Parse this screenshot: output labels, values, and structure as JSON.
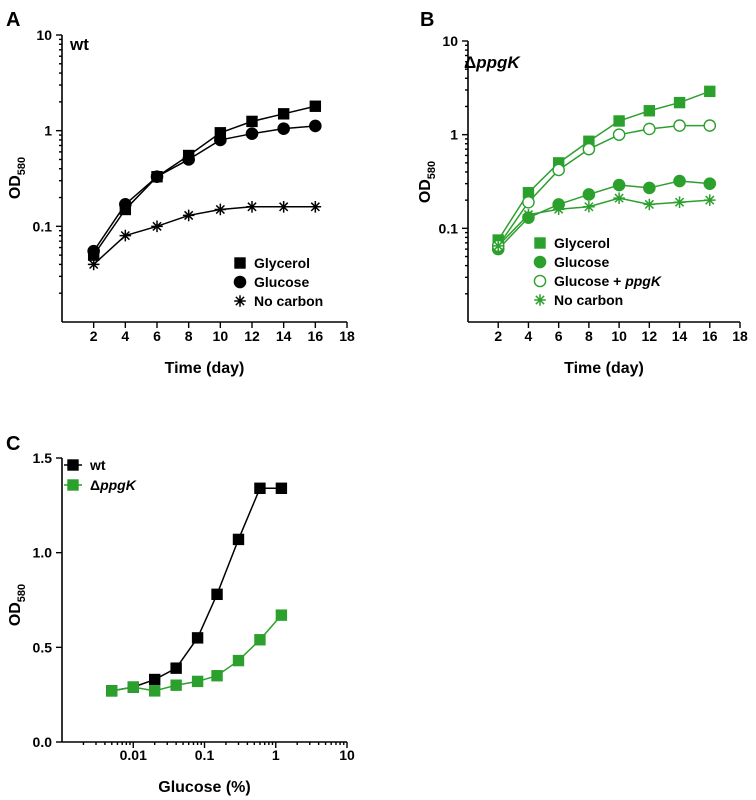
{
  "colors": {
    "black": "#000000",
    "green": "#2ca02c"
  },
  "chart_data": [
    {
      "panel_label": "A",
      "type": "line",
      "title": "wt",
      "title_style": "plain",
      "xlabel": "Time (day)",
      "ylabel": "OD",
      "ylabel_sub": "580",
      "x_scale": "linear",
      "y_scale": "log",
      "xlim": [
        0,
        18
      ],
      "ylim": [
        0.01,
        10
      ],
      "x_ticks": [
        2,
        4,
        6,
        8,
        10,
        12,
        14,
        16,
        18
      ],
      "y_ticks": [
        0.1,
        1,
        10
      ],
      "y_tick_labels": [
        "0.1",
        "1",
        "10"
      ],
      "legend_position": "bottom-right",
      "series": [
        {
          "name": "Glycerol",
          "marker": "square",
          "fill": "filled",
          "color": "#000000",
          "x": [
            2,
            4,
            6,
            8,
            10,
            12,
            14,
            16
          ],
          "y": [
            0.05,
            0.15,
            0.33,
            0.55,
            0.95,
            1.25,
            1.5,
            1.8
          ]
        },
        {
          "name": "Glucose",
          "marker": "circle",
          "fill": "filled",
          "color": "#000000",
          "x": [
            2,
            4,
            6,
            8,
            10,
            12,
            14,
            16
          ],
          "y": [
            0.055,
            0.17,
            0.33,
            0.5,
            0.8,
            0.93,
            1.05,
            1.12
          ]
        },
        {
          "name": "No carbon",
          "marker": "asterisk",
          "fill": "filled",
          "color": "#000000",
          "x": [
            2,
            4,
            6,
            8,
            10,
            12,
            14,
            16
          ],
          "y": [
            0.04,
            0.08,
            0.1,
            0.13,
            0.15,
            0.16,
            0.16,
            0.16
          ]
        }
      ]
    },
    {
      "panel_label": "B",
      "type": "line",
      "title": "ΔppgK",
      "title_style": "delta-italic",
      "xlabel": "Time (day)",
      "ylabel": "OD",
      "ylabel_sub": "580",
      "x_scale": "linear",
      "y_scale": "log",
      "xlim": [
        0,
        18
      ],
      "ylim": [
        0.01,
        10
      ],
      "x_ticks": [
        2,
        4,
        6,
        8,
        10,
        12,
        14,
        16,
        18
      ],
      "y_ticks": [
        0.1,
        1,
        10
      ],
      "y_tick_labels": [
        "0.1",
        "1",
        "10"
      ],
      "legend_position": "bottom-right",
      "series": [
        {
          "name": "Glycerol",
          "marker": "square",
          "fill": "filled",
          "color": "#2ca02c",
          "x": [
            2,
            4,
            6,
            8,
            10,
            12,
            14,
            16
          ],
          "y": [
            0.075,
            0.24,
            0.5,
            0.85,
            1.4,
            1.8,
            2.2,
            2.9
          ]
        },
        {
          "name": "Glucose",
          "marker": "circle",
          "fill": "filled",
          "color": "#2ca02c",
          "x": [
            2,
            4,
            6,
            8,
            10,
            12,
            14,
            16
          ],
          "y": [
            0.06,
            0.13,
            0.18,
            0.23,
            0.29,
            0.27,
            0.32,
            0.3
          ]
        },
        {
          "name": "Glucose + ppgK",
          "name_plain": "Glucose + ",
          "name_italic": "ppgK",
          "marker": "circle",
          "fill": "open",
          "color": "#2ca02c",
          "x": [
            2,
            4,
            6,
            8,
            10,
            12,
            14,
            16
          ],
          "y": [
            0.065,
            0.19,
            0.42,
            0.7,
            1.0,
            1.15,
            1.25,
            1.25
          ]
        },
        {
          "name": "No carbon",
          "marker": "asterisk",
          "fill": "filled",
          "color": "#2ca02c",
          "x": [
            2,
            4,
            6,
            8,
            10,
            12,
            14,
            16
          ],
          "y": [
            0.065,
            0.14,
            0.16,
            0.17,
            0.21,
            0.18,
            0.19,
            0.2
          ]
        }
      ]
    },
    {
      "panel_label": "C",
      "type": "line",
      "title": "",
      "xlabel": "Glucose (%)",
      "ylabel": "OD",
      "ylabel_sub": "580",
      "x_scale": "log",
      "y_scale": "linear",
      "xlim": [
        0.001,
        10
      ],
      "ylim": [
        0,
        1.5
      ],
      "x_ticks": [
        0.01,
        0.1,
        1,
        10
      ],
      "x_tick_labels": [
        "0.01",
        "0.1",
        "1",
        "10"
      ],
      "y_ticks": [
        0,
        0.5,
        1.0,
        1.5
      ],
      "y_tick_labels": [
        "0.0",
        "0.5",
        "1.0",
        "1.5"
      ],
      "legend_position": "top-left",
      "series": [
        {
          "name": "wt",
          "marker": "square",
          "fill": "filled",
          "color": "#000000",
          "x": [
            0.005,
            0.01,
            0.02,
            0.04,
            0.08,
            0.15,
            0.3,
            0.6,
            1.2
          ],
          "y": [
            0.27,
            0.29,
            0.33,
            0.39,
            0.55,
            0.78,
            1.07,
            1.34,
            1.34
          ]
        },
        {
          "name": "ΔppgK",
          "name_delta": "Δ",
          "name_italic": "ppgK",
          "marker": "square",
          "fill": "filled",
          "color": "#2ca02c",
          "x": [
            0.005,
            0.01,
            0.02,
            0.04,
            0.08,
            0.15,
            0.3,
            0.6,
            1.2
          ],
          "y": [
            0.27,
            0.29,
            0.27,
            0.3,
            0.32,
            0.35,
            0.43,
            0.54,
            0.67
          ]
        }
      ]
    }
  ]
}
